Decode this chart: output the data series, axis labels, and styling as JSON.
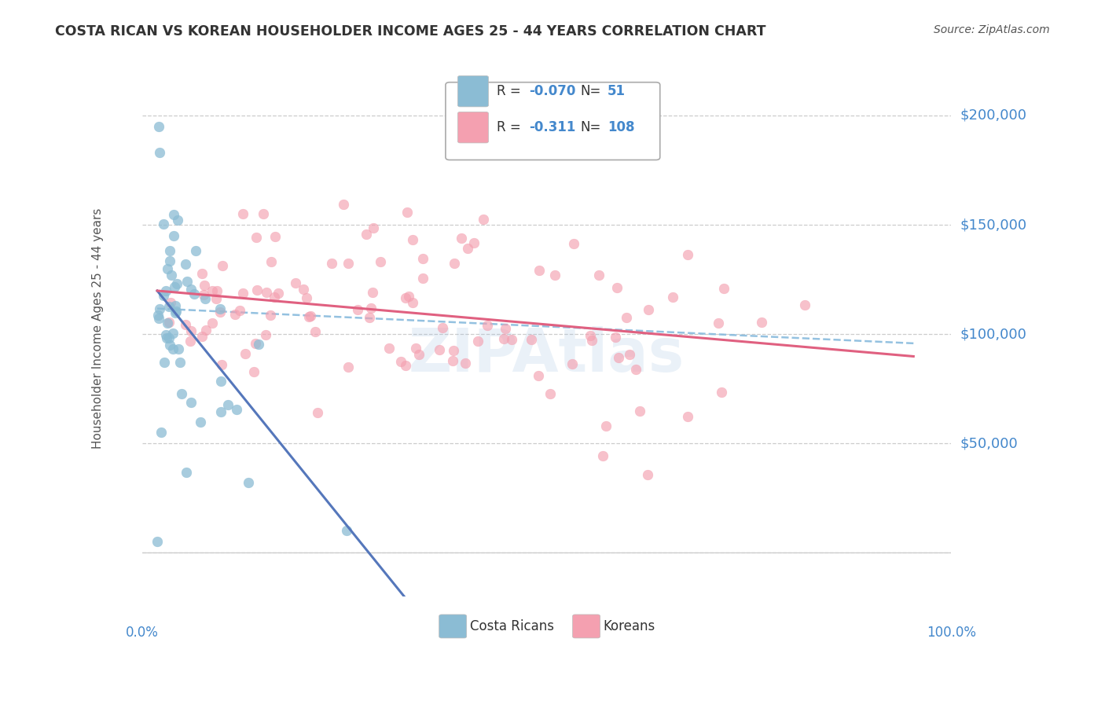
{
  "title": "COSTA RICAN VS KOREAN HOUSEHOLDER INCOME AGES 25 - 44 YEARS CORRELATION CHART",
  "source": "Source: ZipAtlas.com",
  "ylabel": "Householder Income Ages 25 - 44 years",
  "watermark": "ZIPAtlas",
  "legend_items": [
    {
      "label": "Costa Ricans",
      "color": "#8bbcd4",
      "R": "-0.070",
      "N": "51"
    },
    {
      "label": "Koreans",
      "color": "#f4a0b0",
      "R": "-0.311",
      "N": "108"
    }
  ],
  "yticks": [
    0,
    50000,
    100000,
    150000,
    200000
  ],
  "ytick_labels": [
    "",
    "$50,000",
    "$100,000",
    "$150,000",
    "$200,000"
  ],
  "ylim": [
    -20000,
    225000
  ],
  "xlim": [
    -0.02,
    1.05
  ],
  "trend_cr_color": "#5577bb",
  "trend_k_color": "#e06080",
  "trend_all_color": "#88bbdd",
  "grid_color": "#cccccc",
  "background_color": "#ffffff",
  "title_color": "#333333",
  "axis_label_color": "#4488cc",
  "text_color": "#555555",
  "n_cr": 51,
  "n_k": 108
}
